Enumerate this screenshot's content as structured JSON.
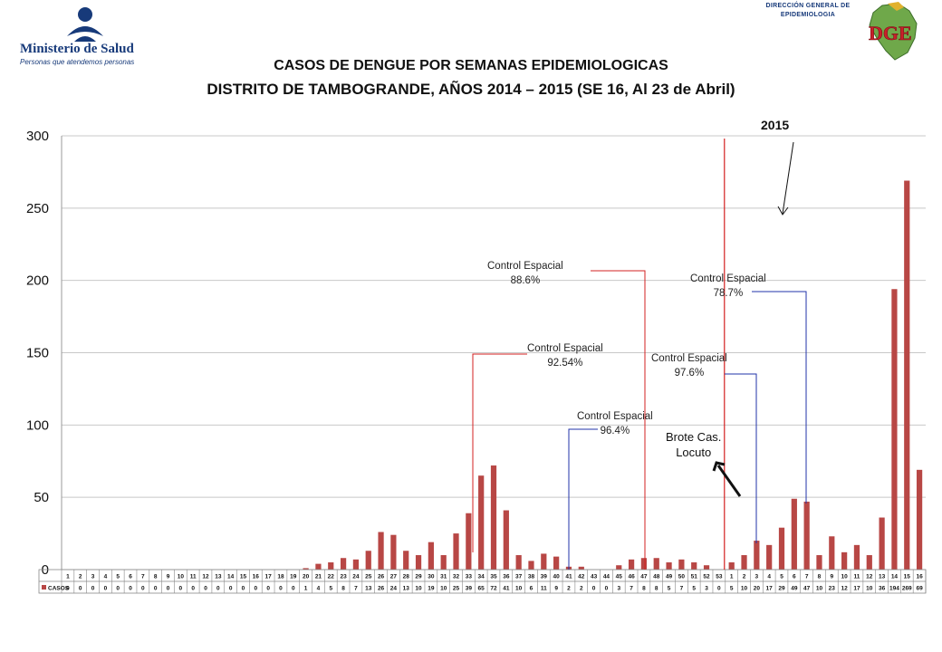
{
  "header": {
    "ministry_name": "Ministerio de Salud",
    "ministry_tagline": "Personas que atendemos personas",
    "dge_line1": "DIRECCIÓN GENERAL DE",
    "dge_line2": "EPIDEMIOLOGIA",
    "dge_letters": "DGE"
  },
  "title_line1": "CASOS DE DENGUE POR SEMANAS EPIDEMIOLOGICAS",
  "title_line2": "DISTRITO DE TAMBOGRANDE, AÑOS 2014 – 2015 (SE 16, Al 23 de Abril)",
  "annotations": {
    "year_2015": "2015",
    "brote_line1": "Brote Cas.",
    "brote_line2": "Locuto",
    "controls": [
      {
        "label": "Control Espacial",
        "pct": "88.6%"
      },
      {
        "label": "Control Espacial",
        "pct": "78.7%"
      },
      {
        "label": "Control Espacial",
        "pct": "92.54%"
      },
      {
        "label": "Control Espacial",
        "pct": "97.6%"
      },
      {
        "label": "Control Espacial",
        "pct": "96.4%"
      }
    ]
  },
  "colors": {
    "bar": "#b84745",
    "red_line": "#d32020",
    "blue_line": "#2233aa",
    "grid": "#c8c8c8"
  },
  "chart_data": {
    "type": "bar",
    "ylim": [
      0,
      300
    ],
    "yticks": [
      0,
      50,
      100,
      150,
      200,
      250,
      300
    ],
    "grid": true,
    "legend": "table-left",
    "categories": [
      "1",
      "2",
      "3",
      "4",
      "5",
      "6",
      "7",
      "8",
      "9",
      "10",
      "11",
      "12",
      "13",
      "14",
      "15",
      "16",
      "17",
      "18",
      "19",
      "20",
      "21",
      "22",
      "23",
      "24",
      "25",
      "26",
      "27",
      "28",
      "29",
      "30",
      "31",
      "32",
      "33",
      "34",
      "35",
      "36",
      "37",
      "38",
      "39",
      "40",
      "41",
      "42",
      "43",
      "44",
      "45",
      "46",
      "47",
      "48",
      "49",
      "50",
      "51",
      "52",
      "53",
      "1",
      "2",
      "3",
      "4",
      "5",
      "6",
      "7",
      "8",
      "9",
      "10",
      "11",
      "12",
      "13",
      "14",
      "15",
      "16"
    ],
    "series": [
      {
        "name": "CASOS",
        "values": [
          0,
          0,
          0,
          0,
          0,
          0,
          0,
          0,
          0,
          0,
          0,
          0,
          0,
          0,
          0,
          0,
          0,
          0,
          0,
          1,
          4,
          5,
          8,
          7,
          13,
          26,
          24,
          13,
          10,
          19,
          10,
          25,
          39,
          65,
          72,
          41,
          10,
          6,
          11,
          9,
          2,
          2,
          0,
          0,
          3,
          7,
          8,
          8,
          5,
          7,
          5,
          3,
          0,
          5,
          10,
          20,
          17,
          29,
          49,
          47,
          10,
          23,
          12,
          17,
          10,
          36,
          194,
          269,
          69
        ]
      }
    ]
  }
}
